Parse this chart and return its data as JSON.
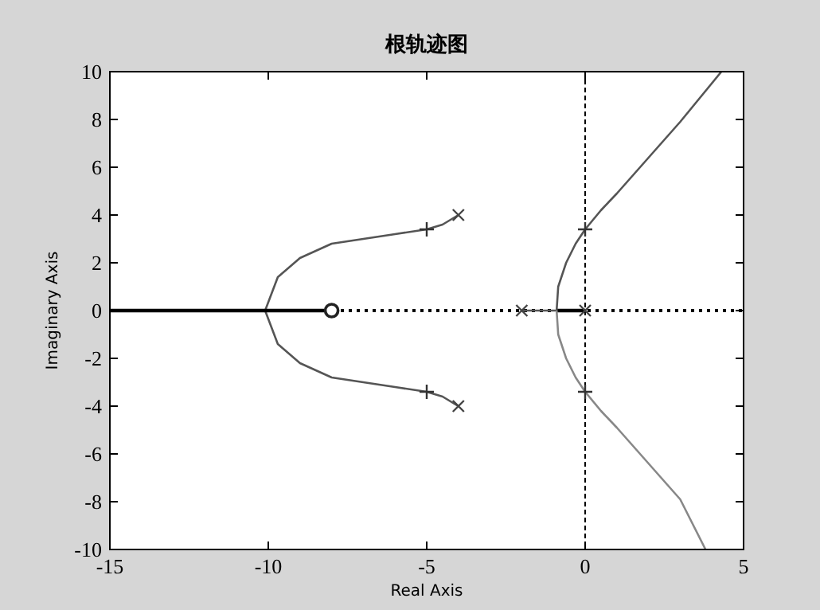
{
  "chart_data": {
    "type": "line",
    "title": "根轨迹图",
    "xlabel": "Real Axis",
    "ylabel": "Imaginary Axis",
    "xlim": [
      -15,
      5
    ],
    "ylim": [
      -10,
      10
    ],
    "xticks": [
      -15,
      -10,
      -5,
      0,
      5
    ],
    "yticks": [
      -10,
      -8,
      -6,
      -4,
      -2,
      0,
      2,
      4,
      6,
      8,
      10
    ],
    "grid": false,
    "series": [
      {
        "marker": "none",
        "color": "#555555",
        "x": [
          -4,
          -4.5,
          -5,
          -6,
          -7,
          -8,
          -9,
          -9.7,
          -10.1
        ],
        "values": [
          4,
          3.6,
          3.4,
          3.2,
          3.0,
          2.8,
          2.2,
          1.4,
          0
        ]
      },
      {
        "type": "line",
        "marker": "none",
        "color": "#555555",
        "x": [
          -4,
          -4.5,
          -5,
          -6,
          -7,
          -8,
          -9,
          -9.7,
          -10.1
        ],
        "values": [
          -4,
          -3.6,
          -3.4,
          -3.2,
          -3.0,
          -2.8,
          -2.2,
          -1.4,
          0
        ]
      },
      {
        "type": "line",
        "marker": "none",
        "color": "#000000",
        "x": [
          -15,
          -8
        ],
        "values": [
          0,
          0
        ]
      },
      {
        "type": "line",
        "marker": "none",
        "color": "#555555",
        "x": [
          -2,
          -0.9
        ],
        "values": [
          0,
          0
        ]
      },
      {
        "type": "line",
        "marker": "none",
        "color": "#000000",
        "x": [
          -0.9,
          0
        ],
        "values": [
          0,
          0
        ]
      },
      {
        "type": "line",
        "marker": "none",
        "color": "#555555",
        "x": [
          -0.9,
          -0.85,
          -0.6,
          -0.3,
          0,
          0.5,
          1,
          2,
          3,
          4.3
        ],
        "values": [
          0,
          1,
          2,
          2.8,
          3.4,
          4.2,
          4.9,
          6.4,
          7.9,
          10
        ]
      },
      {
        "type": "line",
        "marker": "none",
        "color": "#888888",
        "x": [
          -0.9,
          -0.85,
          -0.6,
          -0.3,
          0,
          0.5,
          1,
          2,
          3,
          3.8
        ],
        "values": [
          0,
          -1,
          -2,
          -2.8,
          -3.4,
          -4.2,
          -4.9,
          -6.4,
          -7.9,
          -10
        ]
      },
      {
        "type": "scatter",
        "marker": "cross",
        "color": "#444444",
        "x": [
          -4,
          -4,
          -2,
          0
        ],
        "values": [
          4,
          -4,
          0,
          0
        ]
      },
      {
        "type": "scatter",
        "marker": "plus",
        "color": "#333333",
        "x": [
          -5,
          -5,
          0,
          0
        ],
        "values": [
          3.4,
          -3.4,
          3.4,
          -3.4
        ]
      },
      {
        "type": "scatter",
        "marker": "circle",
        "color": "#222222",
        "x": [
          -8
        ],
        "values": [
          0
        ]
      }
    ],
    "ref_lines": [
      {
        "axis": "x",
        "value": 0,
        "color": "#000000",
        "line_style": "dashed"
      },
      {
        "axis": "y",
        "value": 0,
        "color": "#000000",
        "line_style": "dotted"
      }
    ]
  }
}
